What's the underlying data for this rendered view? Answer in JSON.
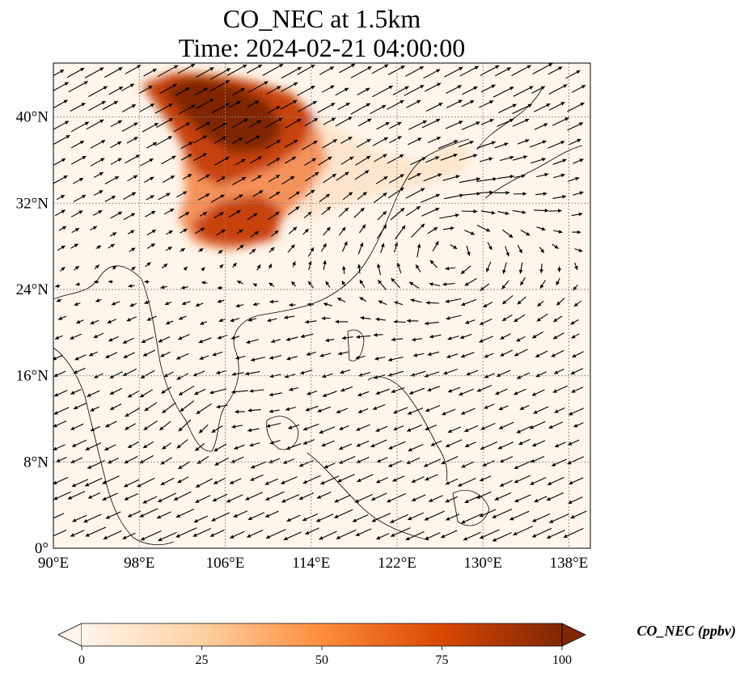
{
  "title": {
    "line1": "CO_NEC at 1.5km",
    "line2": "Time: 2024-02-21 04:00:00"
  },
  "map": {
    "extent": {
      "lon": [
        90,
        140
      ],
      "lat": [
        0,
        45
      ]
    },
    "lon_ticks": [
      90,
      98,
      106,
      114,
      122,
      130,
      138
    ],
    "lon_tick_labels": [
      "90°E",
      "98°E",
      "106°E",
      "114°E",
      "122°E",
      "130°E",
      "138°E"
    ],
    "lat_ticks": [
      0,
      8,
      16,
      24,
      32,
      40
    ],
    "lat_tick_labels": [
      "0°",
      "8°N",
      "16°N",
      "24°N",
      "32°N",
      "40°N"
    ],
    "gridlines": true,
    "background_color": "#fff5eb",
    "coastline_color": "#000000",
    "vector_color": "#000000"
  },
  "colorbar": {
    "label": "CO_NEC (ppbv)",
    "min": 0,
    "max": 100,
    "ticks": [
      0,
      25,
      50,
      75,
      100
    ],
    "tick_labels": [
      "0",
      "25",
      "50",
      "75",
      "100"
    ],
    "extend": "both",
    "colors": [
      "#fff5eb",
      "#fdd0a2",
      "#fd8d3c",
      "#d94801",
      "#7f2704"
    ]
  }
}
